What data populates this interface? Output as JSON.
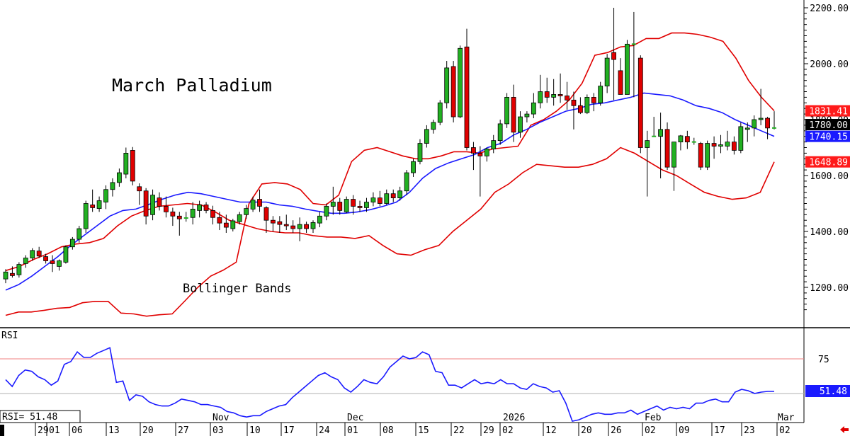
{
  "chart_data": [
    {
      "type": "candlestick",
      "title": "March Palladium",
      "annotation": "Bollinger Bands",
      "ylim": [
        1100,
        2220
      ],
      "y_ticks": [
        1200,
        1400,
        1600,
        1800,
        2000,
        2200
      ],
      "y_tick_labels": [
        "1200.00",
        "1400.00",
        "1600.00",
        "1800.00",
        "2000.00",
        "2200.00"
      ],
      "price_tags": [
        {
          "label": "1831.41",
          "value": 1831.41,
          "color": "#ff1a1a"
        },
        {
          "label": "1780.00",
          "value": 1780.0,
          "color": "#000000"
        },
        {
          "label": "1740.15",
          "value": 1740.15,
          "color": "#1a1aff"
        },
        {
          "label": "1648.89",
          "value": 1648.89,
          "color": "#ff1a1a"
        }
      ],
      "candles_ohlc": [
        [
          1230,
          1265,
          1215,
          1255
        ],
        [
          1250,
          1275,
          1235,
          1242
        ],
        [
          1245,
          1290,
          1235,
          1282
        ],
        [
          1285,
          1315,
          1270,
          1305
        ],
        [
          1305,
          1340,
          1295,
          1332
        ],
        [
          1330,
          1345,
          1305,
          1312
        ],
        [
          1310,
          1320,
          1285,
          1295
        ],
        [
          1295,
          1315,
          1255,
          1285
        ],
        [
          1275,
          1300,
          1260,
          1295
        ],
        [
          1290,
          1350,
          1285,
          1345
        ],
        [
          1345,
          1380,
          1335,
          1372
        ],
        [
          1372,
          1420,
          1360,
          1410
        ],
        [
          1410,
          1510,
          1395,
          1500
        ],
        [
          1495,
          1550,
          1470,
          1485
        ],
        [
          1482,
          1525,
          1470,
          1510
        ],
        [
          1505,
          1565,
          1480,
          1550
        ],
        [
          1550,
          1590,
          1525,
          1575
        ],
        [
          1575,
          1625,
          1560,
          1610
        ],
        [
          1605,
          1700,
          1590,
          1680
        ],
        [
          1690,
          1702,
          1565,
          1580
        ],
        [
          1560,
          1572,
          1495,
          1545
        ],
        [
          1545,
          1555,
          1425,
          1455
        ],
        [
          1460,
          1550,
          1440,
          1530
        ],
        [
          1520,
          1540,
          1475,
          1490
        ],
        [
          1490,
          1525,
          1450,
          1470
        ],
        [
          1470,
          1485,
          1420,
          1455
        ],
        [
          1455,
          1470,
          1385,
          1445
        ],
        [
          1445,
          1470,
          1435,
          1448
        ],
        [
          1450,
          1505,
          1425,
          1480
        ],
        [
          1475,
          1510,
          1450,
          1495
        ],
        [
          1495,
          1505,
          1465,
          1475
        ],
        [
          1475,
          1492,
          1425,
          1450
        ],
        [
          1450,
          1470,
          1405,
          1430
        ],
        [
          1430,
          1460,
          1395,
          1415
        ],
        [
          1410,
          1445,
          1400,
          1438
        ],
        [
          1435,
          1470,
          1425,
          1460
        ],
        [
          1460,
          1495,
          1445,
          1482
        ],
        [
          1480,
          1525,
          1470,
          1512
        ],
        [
          1515,
          1550,
          1470,
          1490
        ],
        [
          1485,
          1490,
          1395,
          1440
        ],
        [
          1440,
          1455,
          1400,
          1430
        ],
        [
          1435,
          1455,
          1395,
          1425
        ],
        [
          1425,
          1460,
          1405,
          1420
        ],
        [
          1420,
          1440,
          1395,
          1410
        ],
        [
          1410,
          1450,
          1365,
          1425
        ],
        [
          1425,
          1435,
          1395,
          1410
        ],
        [
          1410,
          1440,
          1395,
          1432
        ],
        [
          1430,
          1470,
          1415,
          1455
        ],
        [
          1455,
          1500,
          1440,
          1490
        ],
        [
          1490,
          1560,
          1460,
          1505
        ],
        [
          1505,
          1520,
          1460,
          1475
        ],
        [
          1470,
          1525,
          1465,
          1515
        ],
        [
          1515,
          1530,
          1460,
          1490
        ],
        [
          1490,
          1510,
          1470,
          1485
        ],
        [
          1485,
          1520,
          1470,
          1505
        ],
        [
          1505,
          1540,
          1490,
          1520
        ],
        [
          1520,
          1545,
          1490,
          1500
        ],
        [
          1500,
          1550,
          1495,
          1535
        ],
        [
          1535,
          1550,
          1505,
          1520
        ],
        [
          1520,
          1560,
          1510,
          1545
        ],
        [
          1545,
          1620,
          1530,
          1610
        ],
        [
          1610,
          1660,
          1595,
          1650
        ],
        [
          1650,
          1730,
          1640,
          1715
        ],
        [
          1715,
          1780,
          1700,
          1765
        ],
        [
          1765,
          1800,
          1750,
          1790
        ],
        [
          1790,
          1870,
          1780,
          1860
        ],
        [
          1860,
          2010,
          1840,
          1985
        ],
        [
          1990,
          2010,
          1790,
          1810
        ],
        [
          1810,
          2065,
          1805,
          2055
        ],
        [
          2060,
          2125,
          1690,
          1700
        ],
        [
          1700,
          1720,
          1620,
          1680
        ],
        [
          1680,
          1705,
          1525,
          1670
        ],
        [
          1670,
          1700,
          1650,
          1695
        ],
        [
          1695,
          1745,
          1680,
          1725
        ],
        [
          1725,
          1800,
          1710,
          1785
        ],
        [
          1785,
          1895,
          1770,
          1880
        ],
        [
          1880,
          1925,
          1720,
          1755
        ],
        [
          1755,
          1830,
          1735,
          1810
        ],
        [
          1810,
          1830,
          1790,
          1820
        ],
        [
          1820,
          1895,
          1805,
          1860
        ],
        [
          1860,
          1960,
          1840,
          1900
        ],
        [
          1900,
          1950,
          1860,
          1880
        ],
        [
          1880,
          1945,
          1850,
          1890
        ],
        [
          1890,
          1965,
          1860,
          1885
        ],
        [
          1885,
          1935,
          1835,
          1870
        ],
        [
          1870,
          1900,
          1765,
          1850
        ],
        [
          1850,
          1880,
          1820,
          1825
        ],
        [
          1825,
          1890,
          1820,
          1880
        ],
        [
          1880,
          1895,
          1830,
          1860
        ],
        [
          1860,
          1935,
          1850,
          1920
        ],
        [
          1920,
          2035,
          1895,
          2020
        ],
        [
          2040,
          2200,
          1870,
          2015
        ],
        [
          1975,
          2020,
          1920,
          1890
        ],
        [
          1890,
          2085,
          1890,
          2070
        ],
        [
          2070,
          2185,
          1880,
          2070
        ],
        [
          2020,
          2030,
          1680,
          1700
        ],
        [
          1700,
          1760,
          1525,
          1725
        ],
        [
          1740,
          1810,
          1740,
          1740
        ],
        [
          1740,
          1825,
          1590,
          1765
        ],
        [
          1765,
          1790,
          1620,
          1630
        ],
        [
          1630,
          1720,
          1545,
          1720
        ],
        [
          1720,
          1745,
          1690,
          1742
        ],
        [
          1740,
          1760,
          1695,
          1720
        ],
        [
          1720,
          1735,
          1710,
          1720
        ],
        [
          1715,
          1720,
          1620,
          1630
        ],
        [
          1630,
          1725,
          1620,
          1715
        ],
        [
          1715,
          1740,
          1660,
          1705
        ],
        [
          1705,
          1745,
          1680,
          1710
        ],
        [
          1705,
          1760,
          1690,
          1720
        ],
        [
          1720,
          1740,
          1675,
          1690
        ],
        [
          1690,
          1790,
          1680,
          1775
        ],
        [
          1765,
          1790,
          1720,
          1770
        ],
        [
          1770,
          1815,
          1740,
          1800
        ],
        [
          1800,
          1910,
          1780,
          1805
        ],
        [
          1805,
          1810,
          1730,
          1770
        ],
        [
          1770,
          1830,
          1765,
          1770
        ]
      ],
      "bollinger_upper": [
        1100,
        1112,
        1112,
        1118,
        1125,
        1128,
        1145,
        1150,
        1150,
        1108,
        1105,
        1097,
        1102,
        1105,
        1152,
        1200,
        1240,
        1262,
        1290,
        1500,
        1570,
        1575,
        1570,
        1550,
        1500,
        1495,
        1530,
        1650,
        1690,
        1700,
        1685,
        1670,
        1660,
        1660,
        1670,
        1685,
        1685,
        1680,
        1695,
        1700,
        1705,
        1780,
        1800,
        1830,
        1870,
        1930,
        2030,
        2040,
        2060,
        2065,
        2090,
        2090,
        2110,
        2110,
        2105,
        2095,
        2080,
        2020,
        1940,
        1880,
        1831.41
      ],
      "bollinger_middle": [
        1190,
        1210,
        1240,
        1275,
        1310,
        1350,
        1385,
        1420,
        1455,
        1475,
        1480,
        1497,
        1515,
        1530,
        1540,
        1535,
        1525,
        1515,
        1505,
        1505,
        1505,
        1495,
        1490,
        1480,
        1472,
        1465,
        1465,
        1470,
        1478,
        1490,
        1505,
        1540,
        1590,
        1625,
        1645,
        1660,
        1675,
        1700,
        1715,
        1745,
        1765,
        1790,
        1810,
        1830,
        1840,
        1855,
        1860,
        1870,
        1880,
        1895,
        1890,
        1885,
        1870,
        1850,
        1840,
        1825,
        1800,
        1780,
        1760,
        1740.15
      ],
      "bollinger_lower": [
        1260,
        1275,
        1300,
        1320,
        1345,
        1355,
        1360,
        1375,
        1420,
        1455,
        1475,
        1490,
        1495,
        1500,
        1495,
        1470,
        1440,
        1425,
        1410,
        1400,
        1395,
        1395,
        1385,
        1380,
        1380,
        1375,
        1385,
        1350,
        1320,
        1315,
        1335,
        1350,
        1400,
        1440,
        1480,
        1540,
        1570,
        1610,
        1640,
        1635,
        1630,
        1630,
        1640,
        1660,
        1700,
        1680,
        1650,
        1620,
        1600,
        1570,
        1540,
        1525,
        1515,
        1520,
        1540,
        1648.89
      ]
    },
    {
      "type": "line",
      "name": "RSI",
      "readout": "RSI= 51.48",
      "reference_line": 75,
      "y_tick_labels": [
        "75"
      ],
      "last_value": 51.48,
      "last_value_label": "51.48",
      "values": [
        60,
        55,
        63,
        67,
        66,
        62,
        60,
        56,
        59,
        71,
        73,
        80,
        76,
        76,
        79,
        81,
        83,
        58,
        59,
        45,
        49,
        48,
        44,
        42,
        41,
        41,
        43,
        46,
        45,
        44,
        42,
        42,
        41,
        40,
        37,
        36,
        34,
        33,
        34,
        34,
        37,
        39,
        41,
        42,
        47,
        51,
        55,
        59,
        63,
        65,
        62,
        60,
        54,
        51,
        55,
        60,
        58,
        57,
        62,
        69,
        73,
        77,
        75,
        76,
        80,
        78,
        66,
        65,
        56,
        56,
        54,
        57,
        60,
        57,
        58,
        57,
        60,
        57,
        57,
        54,
        53,
        57,
        55,
        54,
        51,
        52,
        43,
        30,
        31,
        33,
        35,
        36,
        35,
        35,
        36,
        36,
        38,
        35,
        37,
        39,
        41,
        38,
        40,
        39,
        40,
        39,
        43,
        43,
        45,
        46,
        44,
        44,
        51,
        53,
        52,
        50,
        51,
        51.48,
        51.48
      ]
    },
    {
      "type": "axis",
      "month_labels": [
        {
          "label": "Nov"
        },
        {
          "label": "Dec"
        },
        {
          "label": "2026"
        },
        {
          "label": "Feb"
        },
        {
          "label": "Mar"
        }
      ],
      "day_labels": [
        "29",
        "01",
        "06",
        "13",
        "20",
        "27",
        "03",
        "10",
        "17",
        "24",
        "01",
        "08",
        "15",
        "22",
        "29",
        "02",
        "12",
        "20",
        "26",
        "02",
        "09",
        "17",
        "23",
        "02"
      ]
    }
  ]
}
